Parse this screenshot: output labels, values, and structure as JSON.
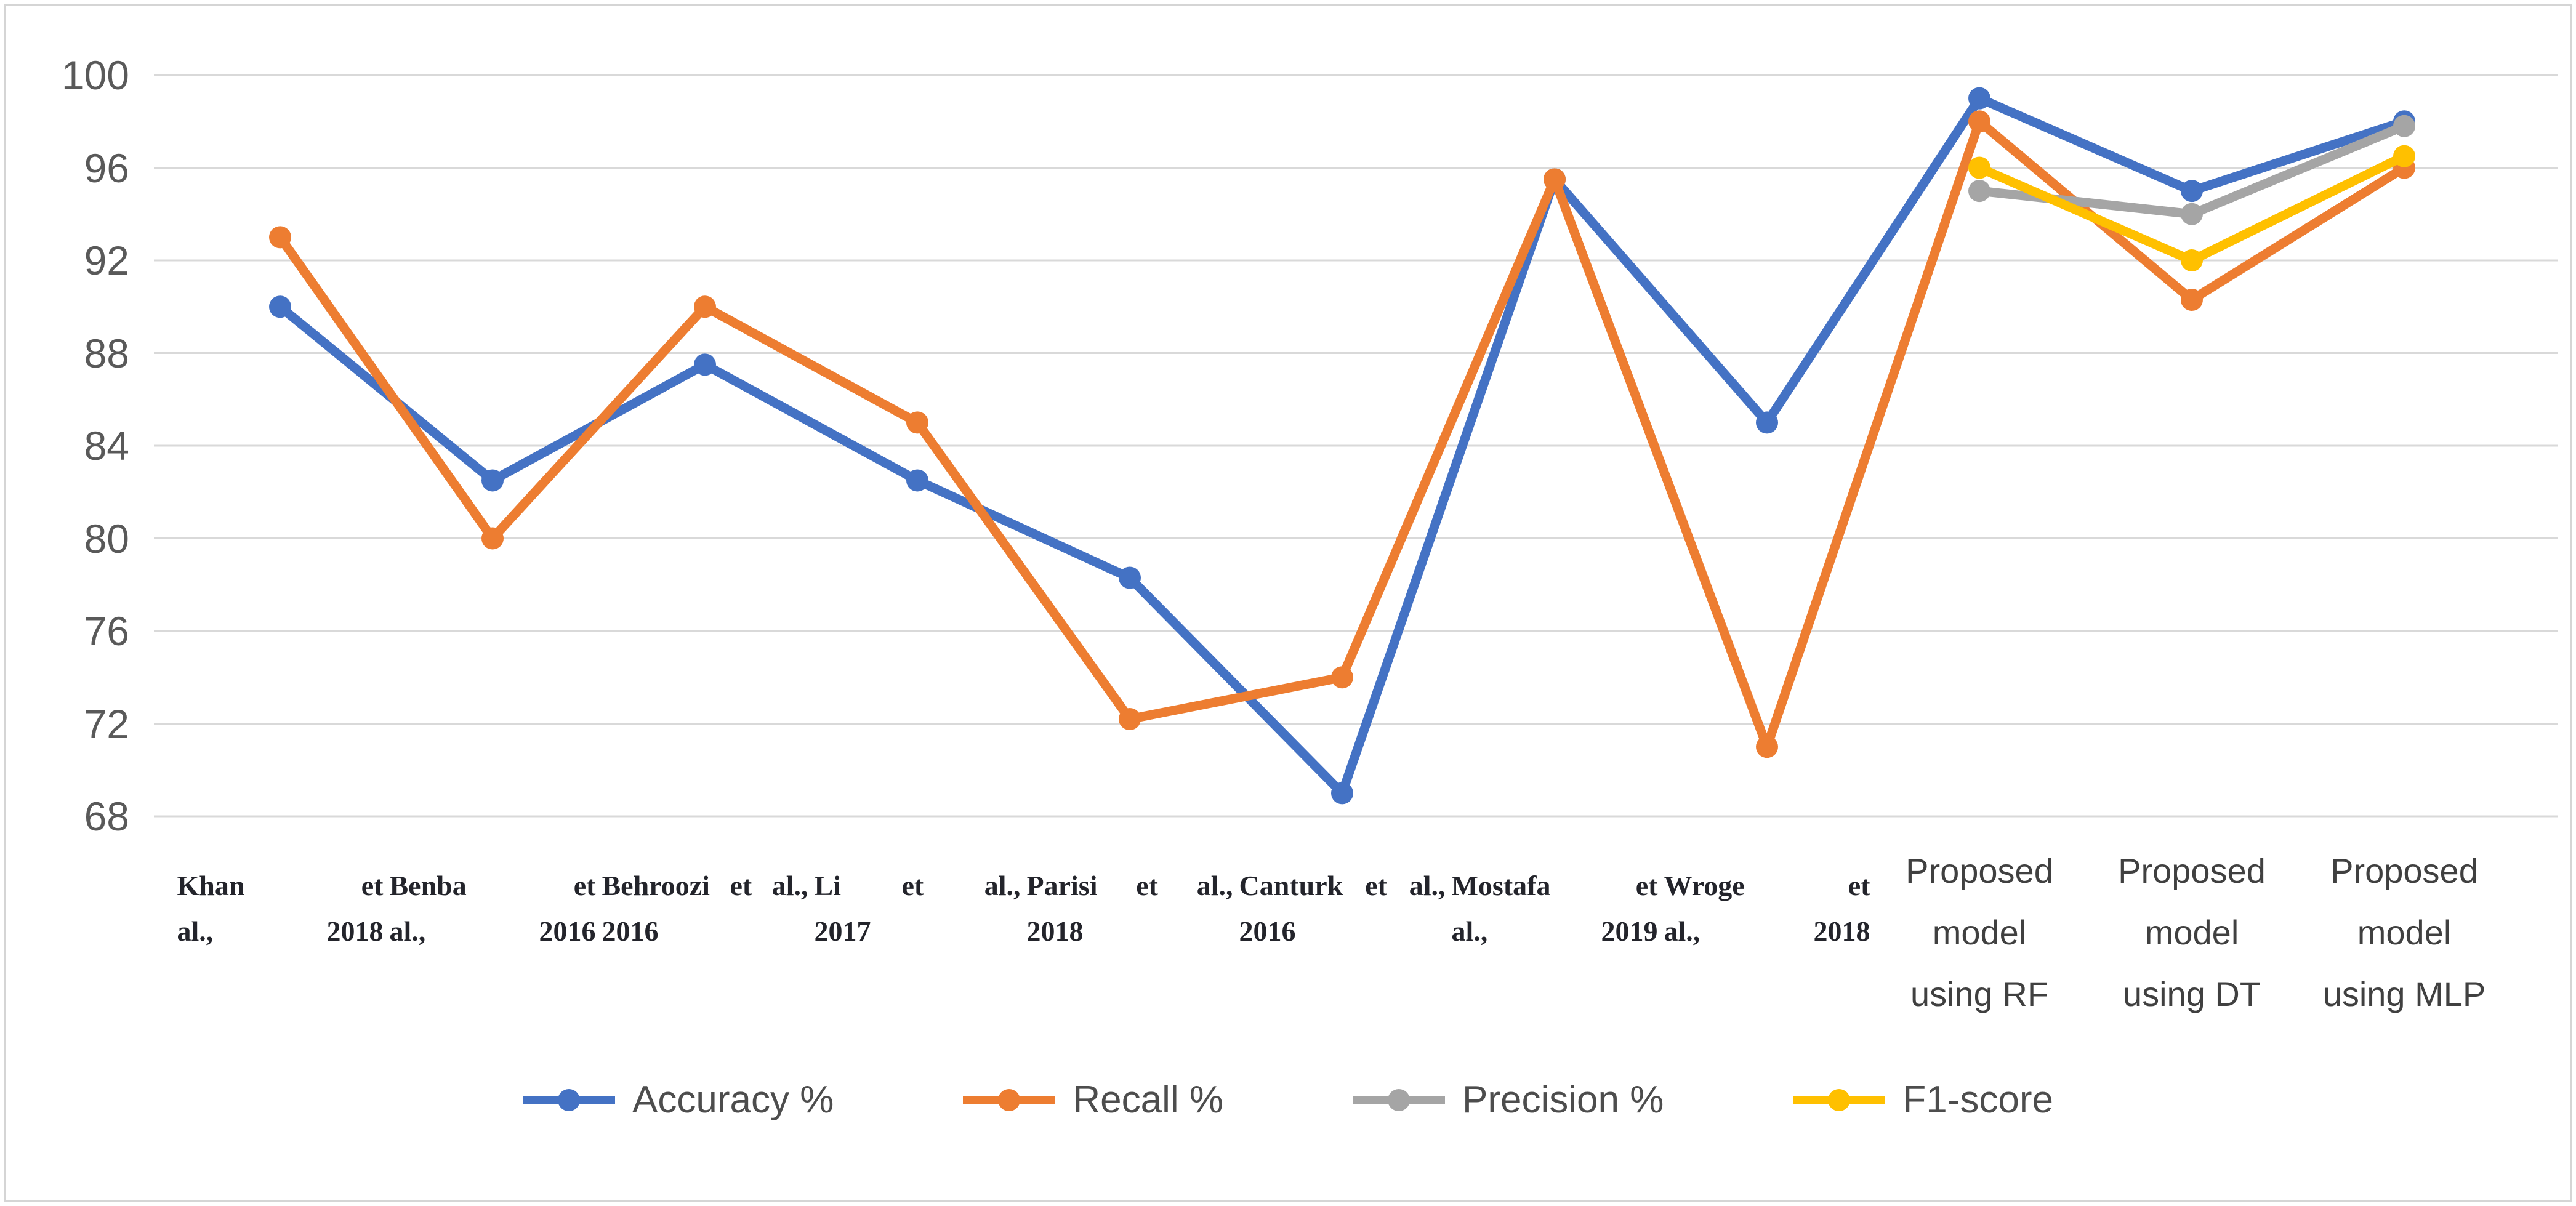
{
  "chart_data": {
    "type": "line",
    "title": "",
    "xlabel": "",
    "ylabel": "",
    "grid": true,
    "legend_position": "bottom",
    "y_axis": {
      "min": 68,
      "max": 100,
      "step": 4,
      "ticks": [
        100,
        96,
        92,
        88,
        84,
        80,
        76,
        72,
        68
      ]
    },
    "categories": [
      "Khan et al., 2018",
      "Benba et al., 2016",
      "Behroozi et al., 2016",
      "Li et al., 2017",
      "Parisi et al., 2018",
      "Canturk et al., 2016",
      "Mostafa et al., 2019",
      "Wroge et al., 2018",
      "Proposed model using RF",
      "Proposed model using DT",
      "Proposed model using MLP"
    ],
    "category_labels": [
      {
        "lines": [
          "Khan et",
          "al., 2018"
        ],
        "style": "study"
      },
      {
        "lines": [
          "Benba et",
          "al., 2016"
        ],
        "style": "study"
      },
      {
        "lines": [
          "Behroozi et al.,",
          "2016"
        ],
        "style": "study"
      },
      {
        "lines": [
          "Li et al.,",
          "2017"
        ],
        "style": "study"
      },
      {
        "lines": [
          "Parisi et al.,",
          "2018"
        ],
        "style": "study"
      },
      {
        "lines": [
          "Canturk et al.,",
          "2016"
        ],
        "style": "study"
      },
      {
        "lines": [
          "Mostafa et",
          "al., 2019"
        ],
        "style": "study"
      },
      {
        "lines": [
          "Wroge et",
          "al., 2018"
        ],
        "style": "study"
      },
      {
        "lines": [
          "Proposed",
          "model",
          "using RF"
        ],
        "style": "proposed"
      },
      {
        "lines": [
          "Proposed",
          "model",
          "using DT"
        ],
        "style": "proposed"
      },
      {
        "lines": [
          "Proposed",
          "model",
          "using MLP"
        ],
        "style": "proposed"
      }
    ],
    "series": [
      {
        "name": "Accuracy %",
        "color": "#4472C4",
        "values": [
          90,
          82.5,
          87.5,
          82.5,
          78.3,
          69,
          95.5,
          85,
          99,
          95,
          98
        ]
      },
      {
        "name": "Recall %",
        "color": "#ED7D31",
        "values": [
          93,
          80,
          90,
          85,
          72.2,
          74,
          95.5,
          71,
          98,
          90.3,
          96
        ]
      },
      {
        "name": "Precision %",
        "color": "#A5A5A5",
        "values": [
          null,
          null,
          null,
          null,
          null,
          null,
          null,
          null,
          95,
          94,
          97.8
        ]
      },
      {
        "name": "F1-score",
        "color": "#FFC000",
        "values": [
          null,
          null,
          null,
          null,
          null,
          null,
          null,
          null,
          96,
          92,
          96.5
        ]
      }
    ],
    "gridline_color": "#D9D9D9",
    "tick_label_color": "#595959"
  }
}
